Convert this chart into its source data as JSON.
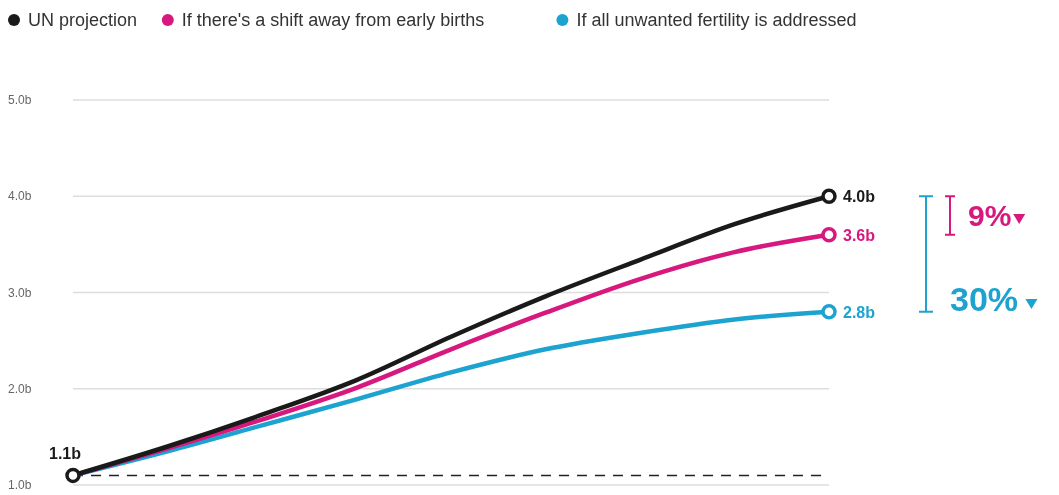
{
  "chart_data": {
    "type": "line",
    "categories": [
      null,
      null,
      null,
      null,
      null,
      null,
      null,
      null,
      null
    ],
    "ylim": [
      1,
      5
    ],
    "yticks": [
      {
        "value": 1,
        "label": "1.0b"
      },
      {
        "value": 2,
        "label": "2.0b"
      },
      {
        "value": 3,
        "label": "3.0b"
      },
      {
        "value": 4,
        "label": "4.0b"
      },
      {
        "value": 5,
        "label": "5.0b"
      }
    ],
    "grid": "y",
    "legend": "top left",
    "line_style": "solid",
    "series": [
      {
        "name": "UN projection",
        "color": "#1a1a1a",
        "values": [
          1.1,
          1.4,
          1.73,
          2.09,
          2.54,
          2.96,
          3.34,
          3.71,
          4.0
        ],
        "value_labels": [
          "1.1b",
          null,
          null,
          null,
          null,
          null,
          null,
          null,
          "4.0b"
        ]
      },
      {
        "name": "If there's a shift away from early births",
        "color": "#d6187f",
        "values": [
          1.1,
          1.38,
          1.68,
          2.01,
          2.41,
          2.79,
          3.14,
          3.42,
          3.6
        ],
        "value_labels": [
          null,
          null,
          null,
          null,
          null,
          null,
          null,
          null,
          "3.6b"
        ]
      },
      {
        "name": "If all unwanted fertility is addressed",
        "color": "#1ca3cf",
        "values": [
          1.1,
          1.35,
          1.62,
          1.89,
          2.17,
          2.41,
          2.58,
          2.72,
          2.8
        ],
        "value_labels": [
          null,
          null,
          null,
          null,
          null,
          null,
          null,
          null,
          "2.8b"
        ]
      }
    ],
    "ref_lines": [
      {
        "axis": "y",
        "value": 1.1,
        "color": "#222222",
        "line_style": "dashed"
      }
    ],
    "annotations": [
      "9%",
      "30%"
    ]
  }
}
